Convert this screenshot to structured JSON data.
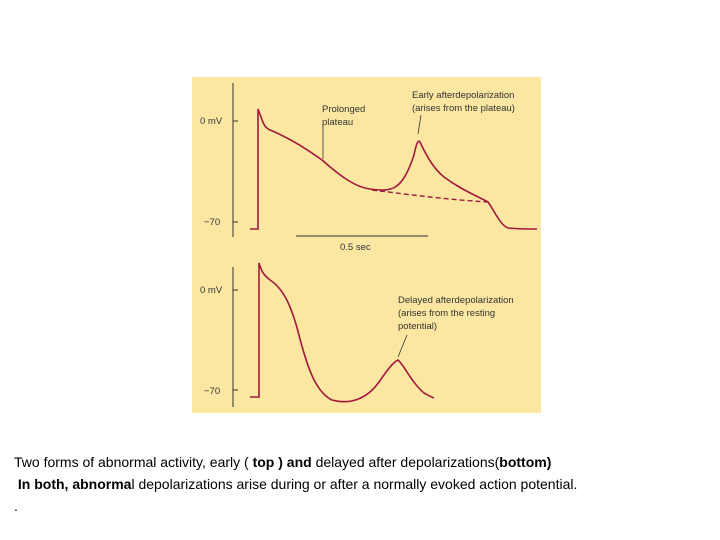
{
  "colors": {
    "panel_bg": "#fbe7a2",
    "trace": "#a3193b",
    "axis": "#333333"
  },
  "top_panel": {
    "y_axis_labels": [
      "0 mV",
      "−70"
    ],
    "annotation_plateau": [
      "Prolonged",
      "plateau"
    ],
    "annotation_early": [
      "Early afterdepolarization",
      "(arises from the plateau)"
    ]
  },
  "time_scale_label": "0.5 sec",
  "bottom_panel": {
    "y_axis_labels": [
      "0 mV",
      "−70"
    ],
    "annotation_delayed": [
      "Delayed afterdepolarization",
      "(arises from the resting",
      "potential)"
    ]
  },
  "caption": {
    "line1": [
      {
        "text": "Two forms of abnormal activity, early ( ",
        "bold": false
      },
      {
        "text": "top ) and",
        "bold": true
      },
      {
        "text": " delayed after depolarizations(",
        "bold": false
      },
      {
        "text": "bottom)",
        "bold": true
      }
    ],
    "line2": [
      {
        "text": " In both, abnorma",
        "bold": true
      },
      {
        "text": "l depolarizations arise during or after a normally evoked action potential.",
        "bold": false
      }
    ],
    "line3": "."
  }
}
